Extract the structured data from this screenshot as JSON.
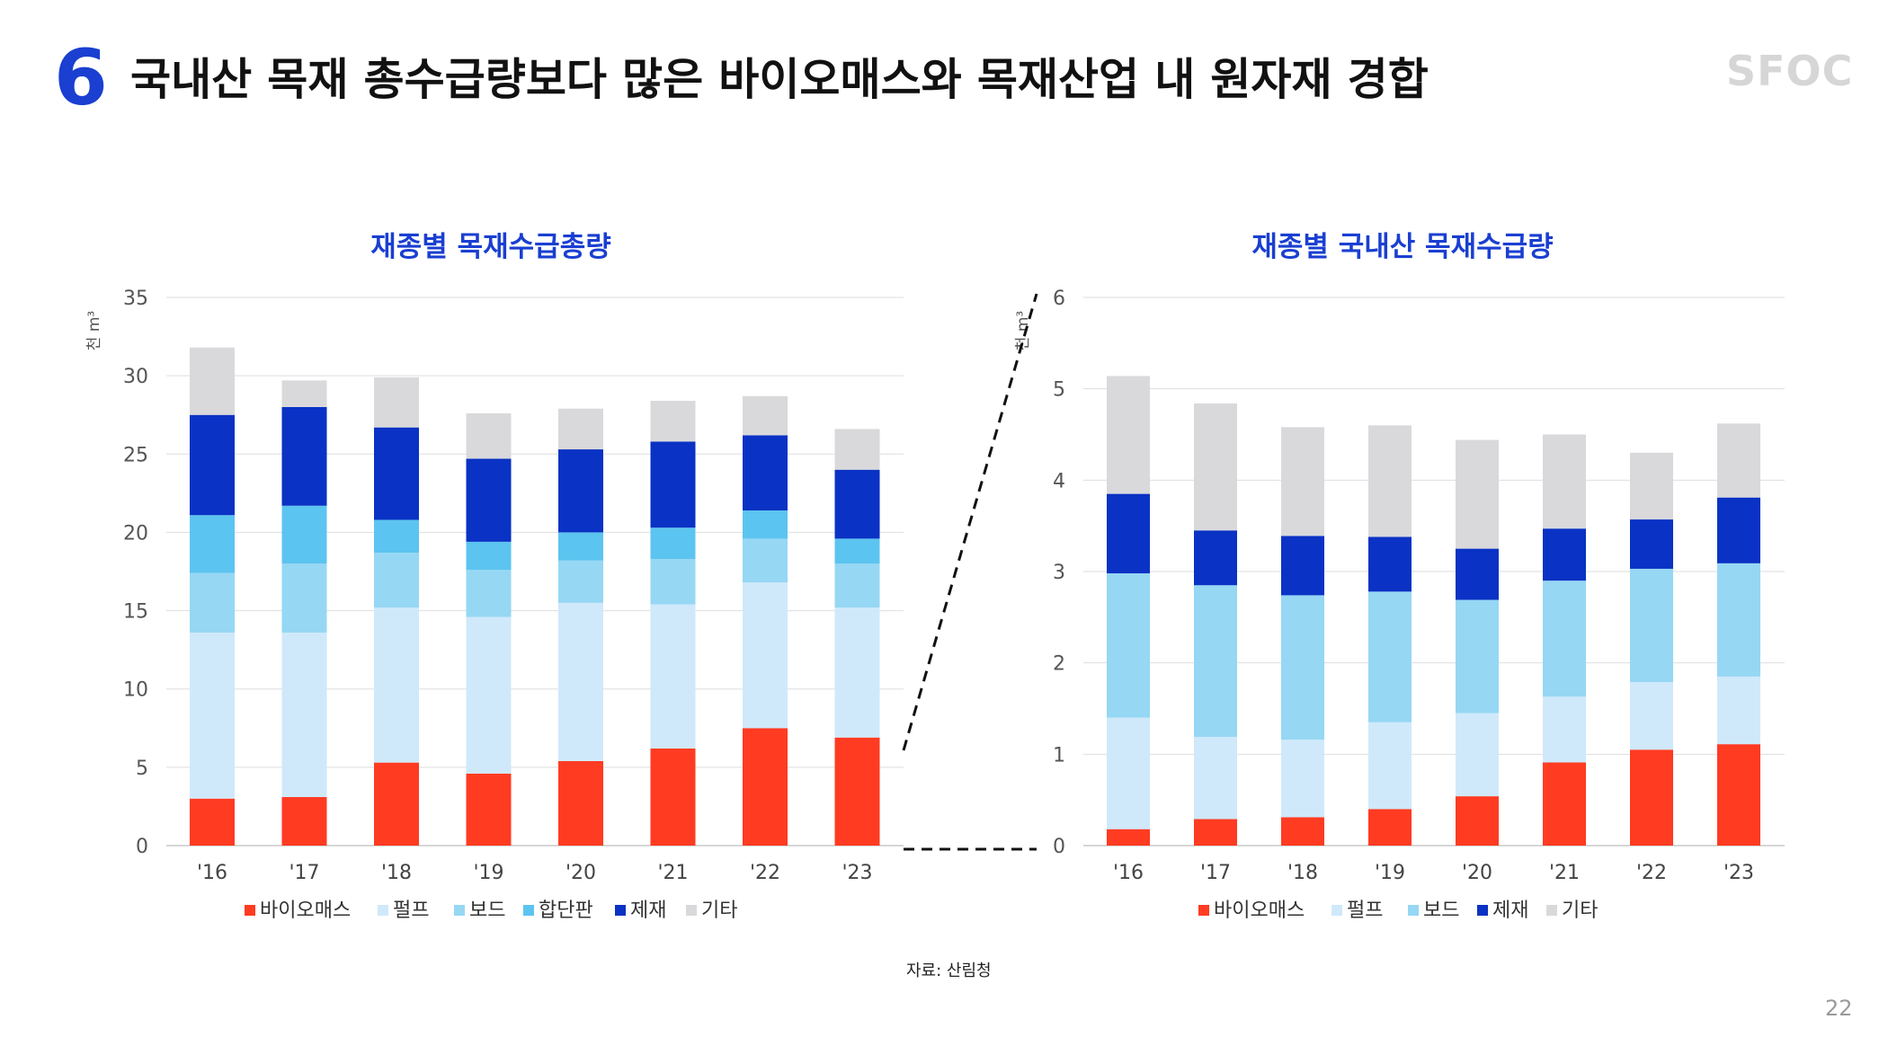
{
  "slide": {
    "number": "6",
    "title": "국내산 목재 총수급량보다 많은 바이오매스와 목재산업 내 원자재 경합",
    "logo": "SFOC",
    "source": "자료: 산림청",
    "page": "22"
  },
  "colors": {
    "바이오매스": "#ff3b22",
    "펄프": "#cfe9fb",
    "보드": "#96d7f4",
    "합단판": "#5cc4f0",
    "제재": "#0a32c4",
    "기타": "#d9d9dc"
  },
  "chart_data": [
    {
      "type": "bar",
      "stacked": true,
      "title": "재종별 목재수급총량",
      "ylabel": "천 m³",
      "ylim": [
        0,
        35
      ],
      "yticks": [
        "0",
        "5",
        "10",
        "15",
        "20",
        "25",
        "30",
        "35"
      ],
      "grid": true,
      "legend": "bottom",
      "categories": [
        "'16",
        "'17",
        "'18",
        "'19",
        "'20",
        "'21",
        "'22",
        "'23"
      ],
      "series": [
        {
          "name": "바이오매스",
          "values": [
            3.0,
            3.1,
            5.3,
            4.6,
            5.4,
            6.2,
            7.5,
            6.9
          ]
        },
        {
          "name": "펄프",
          "values": [
            10.6,
            10.5,
            9.9,
            10.0,
            10.1,
            9.2,
            9.3,
            8.3
          ]
        },
        {
          "name": "보드",
          "values": [
            3.8,
            4.4,
            3.5,
            3.0,
            2.7,
            2.9,
            2.8,
            2.8
          ]
        },
        {
          "name": "합단판",
          "values": [
            3.7,
            3.7,
            2.1,
            1.8,
            1.8,
            2.0,
            1.8,
            1.6
          ]
        },
        {
          "name": "제재",
          "values": [
            6.4,
            6.3,
            5.9,
            5.3,
            5.3,
            5.5,
            4.8,
            4.4
          ]
        },
        {
          "name": "기타",
          "values": [
            4.3,
            1.7,
            3.2,
            2.9,
            2.6,
            2.6,
            2.5,
            2.6
          ]
        }
      ]
    },
    {
      "type": "bar",
      "stacked": true,
      "title": "재종별 국내산 목재수급량",
      "ylabel": "천 m³",
      "ylim": [
        0,
        6
      ],
      "yticks": [
        "0",
        "1",
        "2",
        "3",
        "4",
        "5",
        "6"
      ],
      "grid": true,
      "legend": "bottom",
      "categories": [
        "'16",
        "'17",
        "'18",
        "'19",
        "'20",
        "'21",
        "'22",
        "'23"
      ],
      "series": [
        {
          "name": "바이오매스",
          "values": [
            0.18,
            0.29,
            0.31,
            0.4,
            0.54,
            0.91,
            1.05,
            1.11
          ]
        },
        {
          "name": "펄프",
          "values": [
            1.22,
            0.9,
            0.85,
            0.95,
            0.91,
            0.72,
            0.74,
            0.74
          ]
        },
        {
          "name": "보드",
          "values": [
            1.58,
            1.66,
            1.58,
            1.43,
            1.24,
            1.27,
            1.24,
            1.24
          ]
        },
        {
          "name": "제재",
          "values": [
            0.87,
            0.6,
            0.65,
            0.6,
            0.56,
            0.57,
            0.54,
            0.72
          ]
        },
        {
          "name": "기타",
          "values": [
            1.29,
            1.39,
            1.19,
            1.22,
            1.19,
            1.03,
            0.73,
            0.81
          ]
        }
      ]
    }
  ]
}
